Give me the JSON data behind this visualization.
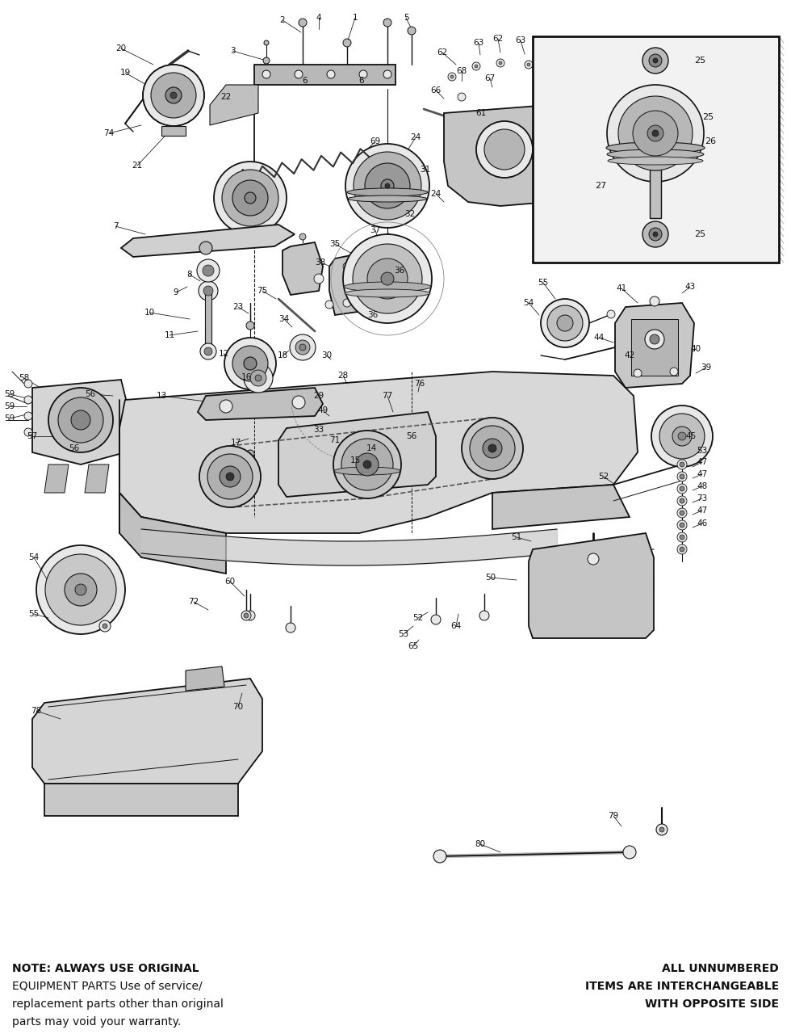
{
  "bg_color": "#ffffff",
  "diagram_color": "#1a1a1a",
  "line_color": "#111111",
  "gray_fill": "#cccccc",
  "dark_gray": "#888888",
  "light_gray": "#e8e8e8",
  "note_left_line1": "NOTE: ALWAYS USE ORIGINAL",
  "note_left_line2": "EQUIPMENT PARTS Use of service/",
  "note_left_line3": "replacement parts other than original",
  "note_left_line4": "parts may void your warranty.",
  "note_right_line1": "ALL UNNUMBERED",
  "note_right_line2": "ITEMS ARE INTERCHANGEABLE",
  "note_right_line3": "WITH OPPOSITE SIDE",
  "figsize": [
    9.8,
    12.8
  ],
  "dpi": 100
}
